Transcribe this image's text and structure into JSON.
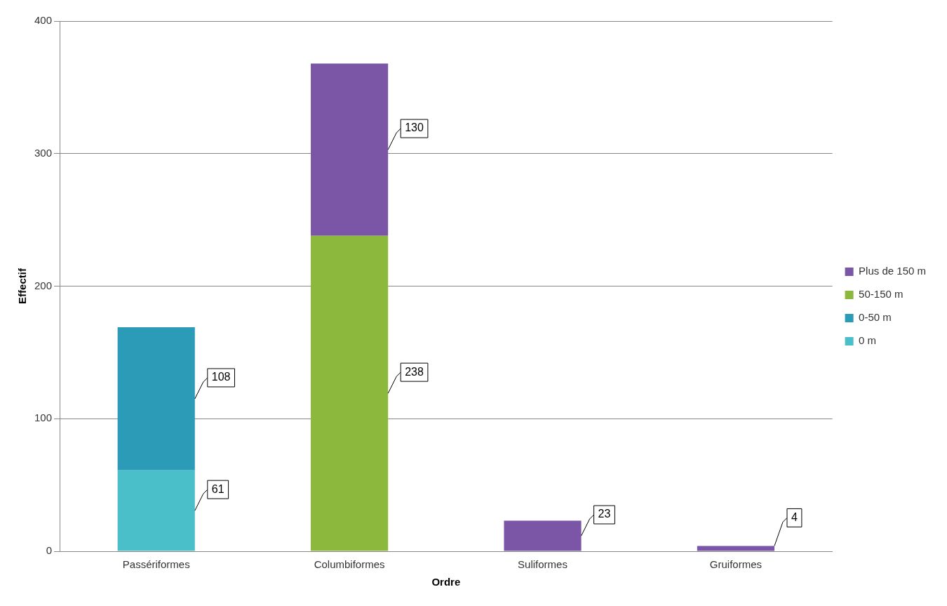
{
  "chart_data": {
    "type": "bar",
    "stacked": true,
    "xlabel": "Ordre",
    "ylabel": "Effectif",
    "categories": [
      "Passériformes",
      "Columbiformes",
      "Suliformes",
      "Gruiformes"
    ],
    "series": [
      {
        "name": "0 m",
        "color": "#4bbfc9",
        "values": [
          61,
          null,
          null,
          null
        ]
      },
      {
        "name": "0-50 m",
        "color": "#2b9bb8",
        "values": [
          108,
          null,
          null,
          null
        ]
      },
      {
        "name": "50-150 m",
        "color": "#8cb83e",
        "values": [
          null,
          238,
          null,
          null
        ]
      },
      {
        "name": "Plus de 150 m",
        "color": "#7b55a6",
        "values": [
          null,
          130,
          23,
          4
        ]
      }
    ],
    "ylim": [
      0,
      400
    ],
    "yticks": [
      0,
      100,
      200,
      300,
      400
    ],
    "grid": "y",
    "legend": "right",
    "data_labels": true
  }
}
